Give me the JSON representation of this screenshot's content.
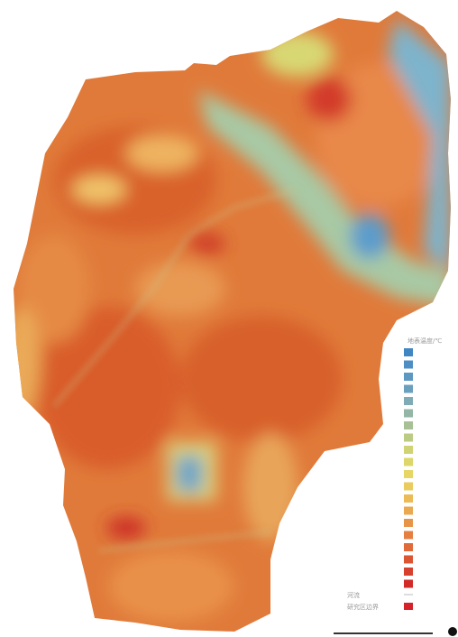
{
  "legend": {
    "title": "地表温度/℃",
    "items": [
      "河流",
      "研究区边界"
    ]
  }
}
